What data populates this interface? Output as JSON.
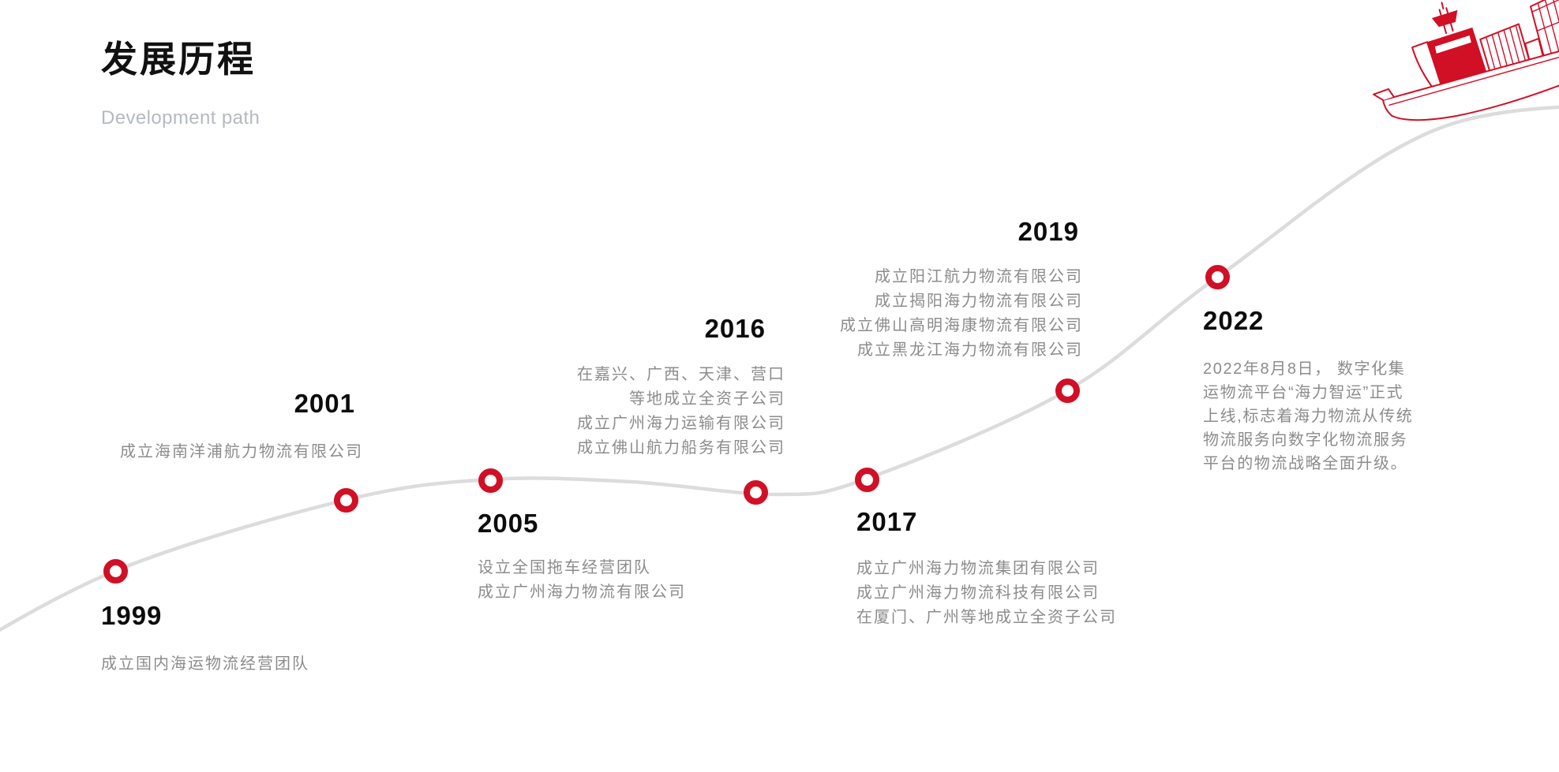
{
  "page": {
    "title": "发展历程",
    "subtitle": "Development path"
  },
  "colors": {
    "accent_red": "#D10F25",
    "curve_gray": "#dcdcdc",
    "year_text": "#0c0c0c",
    "desc_text": "#8c8c8c",
    "subtitle_text": "#b5bac1"
  },
  "icons": {
    "ship": "container-ship-line-art-icon"
  },
  "timeline": {
    "type": "milestone-curve",
    "marker_shape": "red-ring",
    "milestones": [
      {
        "year": "1999",
        "lines": [
          "成立国内海运物流经营团队"
        ]
      },
      {
        "year": "2001",
        "lines": [
          "成立海南洋浦航力物流有限公司"
        ]
      },
      {
        "year": "2005",
        "lines": [
          "设立全国拖车经营团队",
          "成立广州海力物流有限公司"
        ]
      },
      {
        "year": "2016",
        "lines": [
          "在嘉兴、广西、天津、营口",
          "等地成立全资子公司",
          "成立广州海力运输有限公司",
          "成立佛山航力船务有限公司"
        ]
      },
      {
        "year": "2017",
        "lines": [
          "成立广州海力物流集团有限公司",
          "成立广州海力物流科技有限公司",
          "在厦门、广州等地成立全资子公司"
        ]
      },
      {
        "year": "2019",
        "lines": [
          "成立阳江航力物流有限公司",
          "成立揭阳海力物流有限公司",
          "成立佛山高明海康物流有限公司",
          "成立黑龙江海力物流有限公司"
        ]
      },
      {
        "year": "2022",
        "lines": [
          "2022年8月8日， 数字化集",
          "运物流平台“海力智运”正式",
          "上线,标志着海力物流从传统",
          "物流服务向数字化物流服务",
          "平台的物流战略全面升级。"
        ]
      }
    ]
  }
}
